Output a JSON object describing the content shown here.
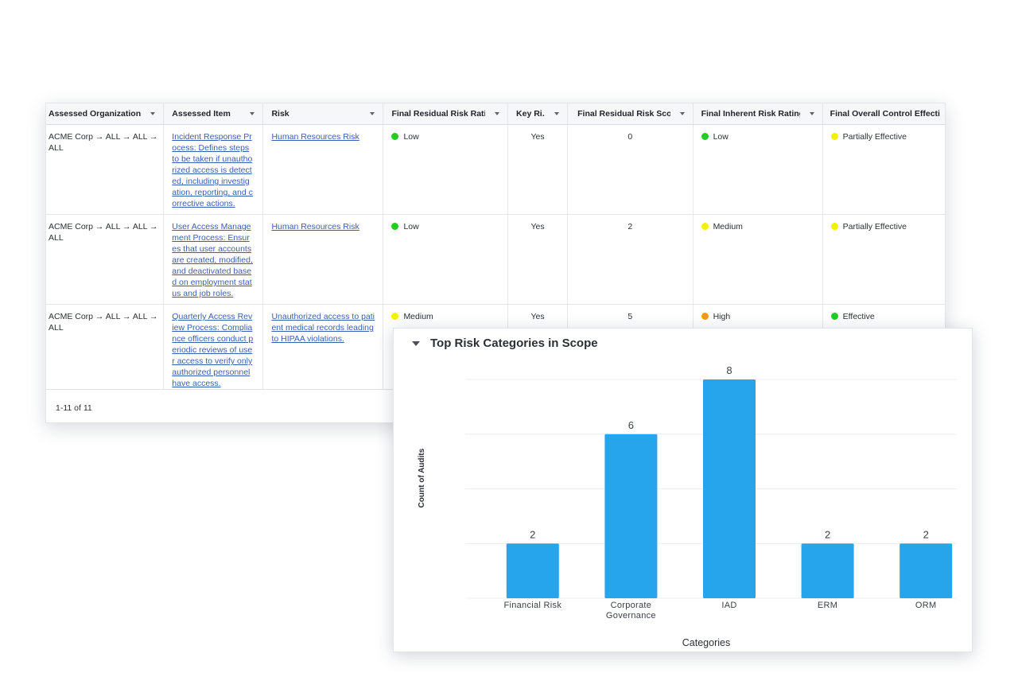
{
  "grid": {
    "columns": [
      {
        "label": "Assessed Organization"
      },
      {
        "label": "Assessed Item"
      },
      {
        "label": "Risk"
      },
      {
        "label": "Final Residual Risk Rating"
      },
      {
        "label": "Key Ri..."
      },
      {
        "label": "Final Residual Risk Score"
      },
      {
        "label": "Final Inherent Risk Rating"
      },
      {
        "label": "Final Overall Control Effecti"
      }
    ],
    "rows": [
      {
        "org": "ACME Corp → ALL → ALL → ALL",
        "item": "Incident Response Process: Defines steps to be taken if unauthorized access is detected, including investigation, reporting, and corrective actions.",
        "risk": "Human Resources Risk",
        "residual_rating": "Low",
        "residual_color": "#22cc22",
        "key_risk": "Yes",
        "score": "0",
        "inherent_rating": "Low",
        "inherent_color": "#22cc22",
        "control": "Partially Effective",
        "control_color": "#f2f200"
      },
      {
        "org": "ACME Corp → ALL → ALL → ALL",
        "item": "User Access Management Process: Ensures that user accounts are created, modified, and deactivated based on employment status and job roles.",
        "risk": "Human Resources Risk",
        "residual_rating": "Low",
        "residual_color": "#22cc22",
        "key_risk": "Yes",
        "score": "2",
        "inherent_rating": "Medium",
        "inherent_color": "#f2f200",
        "control": "Partially Effective",
        "control_color": "#f2f200"
      },
      {
        "org": "ACME Corp → ALL → ALL → ALL",
        "item": "Quarterly Access Review Process: Compliance officers conduct periodic reviews of user access to verify only authorized personnel have access.",
        "risk": "Unauthorized access to patient medical records leading to HIPAA violations.",
        "residual_rating": "Medium",
        "residual_color": "#f2f200",
        "key_risk": "Yes",
        "score": "5",
        "inherent_rating": "High",
        "inherent_color": "#f59a12",
        "control": "Effective",
        "control_color": "#22cc22"
      }
    ],
    "pagination": "1-11 of 11"
  },
  "chart_panel": {
    "title": "Top Risk Categories in Scope",
    "collapse_icon": "caret-down-icon"
  },
  "chart_data": {
    "type": "bar",
    "title": "Top Risk Categories in Scope",
    "categories": [
      [
        "Financial Risk"
      ],
      [
        "Corporate",
        "Governance"
      ],
      [
        "IAD"
      ],
      [
        "ERM"
      ],
      [
        "ORM"
      ]
    ],
    "values": [
      2,
      6,
      8,
      2,
      2
    ],
    "xlabel": "Categories",
    "ylabel": "Count of Audits",
    "ylim": [
      0,
      8
    ],
    "grid": true,
    "bar_color": "#26a4ec",
    "data_labels": true
  }
}
